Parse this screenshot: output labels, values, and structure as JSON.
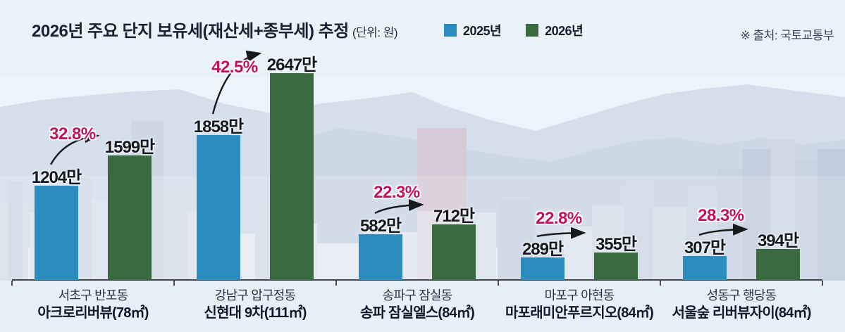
{
  "header": {
    "title": "2026년 주요 단지 보유세(재산세+종부세) 추정",
    "unit": "(단위: 원)",
    "source": "※ 출처: 국토교통부"
  },
  "legend": {
    "items": [
      {
        "label": "2025년",
        "color": "#2b8cbf"
      },
      {
        "label": "2026년",
        "color": "#3a6b40"
      }
    ]
  },
  "chart_data": {
    "type": "bar",
    "title": "2026년 주요 단지 보유세(재산세+종부세) 추정",
    "unit": "원",
    "value_unit_suffix": "만",
    "legend_position": "top",
    "grid": false,
    "series_names": [
      "2025년",
      "2026년"
    ],
    "colors": {
      "2025": "#2b8cbf",
      "2026": "#3a6b40",
      "percent": "#c3105f"
    },
    "groups": [
      {
        "district": "서초구 반포동",
        "complex": "아크로리버뷰(78㎡)",
        "value_2025": 1204,
        "value_2026": 1599,
        "label_2025": "1204만",
        "label_2026": "1599만",
        "change_pct": "32.8%"
      },
      {
        "district": "강남구 압구정동",
        "complex": "신현대 9차(111㎡)",
        "value_2025": 1858,
        "value_2026": 2647,
        "label_2025": "1858만",
        "label_2026": "2647만",
        "change_pct": "42.5%"
      },
      {
        "district": "송파구 잠실동",
        "complex": "송파 잠실엘스(84㎡)",
        "value_2025": 582,
        "value_2026": 712,
        "label_2025": "582만",
        "label_2026": "712만",
        "change_pct": "22.3%"
      },
      {
        "district": "마포구 아현동",
        "complex": "마포래미안푸르지오(84㎡)",
        "value_2025": 289,
        "value_2026": 355,
        "label_2025": "289만",
        "label_2026": "355만",
        "change_pct": "22.8%"
      },
      {
        "district": "성동구 행당동",
        "complex": "서울숲 리버뷰자이(84㎡)",
        "value_2025": 307,
        "value_2026": 394,
        "label_2025": "307만",
        "label_2026": "394만",
        "change_pct": "28.3%"
      }
    ]
  }
}
